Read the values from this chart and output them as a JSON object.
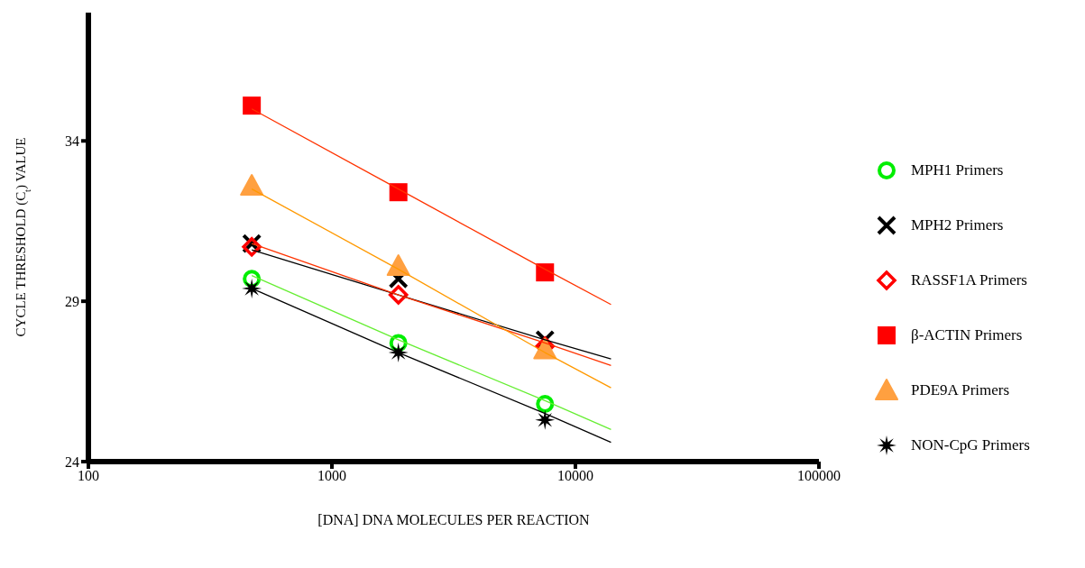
{
  "chart_data": {
    "type": "scatter",
    "xlabel": "[DNA] DNA MOLECULES PER REACTION",
    "ylabel": "CYCLE THRESHOLD (C$_{t}$) VALUE",
    "log": "x",
    "xlim": [
      100,
      100000
    ],
    "xticks": [
      100,
      1000,
      10000,
      100000
    ],
    "ylim": [
      24,
      38
    ],
    "yticks": [
      24,
      29,
      34
    ],
    "legend": "right",
    "x": [
      468.75,
      1875,
      7500,
      14000
    ],
    "series": [
      {
        "name": "MPH1 Primers",
        "color": "#00ee00",
        "marker": "circle",
        "values": [
          29.7,
          27.7,
          25.8,
          null
        ]
      },
      {
        "name": "MPH2 Primers",
        "color": "#000000",
        "marker": "cross",
        "values": [
          30.8,
          29.7,
          27.8,
          null
        ]
      },
      {
        "name": "RASSF1A Primers",
        "color": "#ff0000",
        "marker": "diamond",
        "values": [
          30.7,
          29.2,
          27.6,
          null
        ]
      },
      {
        "name": "β-ACTIN Primers",
        "color": "#ff0000",
        "marker": "square",
        "values": [
          35.1,
          32.4,
          29.9,
          null
        ]
      },
      {
        "name": "PDE9A Primers",
        "color": "#ffa040",
        "marker": "triangle",
        "values": [
          32.6,
          30.1,
          27.5,
          null
        ]
      },
      {
        "name": "NON-CpG Primers",
        "color": "#000000",
        "marker": "star",
        "values": [
          29.4,
          27.4,
          25.3,
          null
        ]
      },
      {
        "type": "line",
        "color": "#66ee33",
        "values": [
          29.8,
          27.8,
          25.9,
          25.0
        ]
      },
      {
        "type": "line",
        "color": "#000000",
        "values": [
          30.6,
          29.2,
          27.8,
          27.2
        ]
      },
      {
        "type": "line",
        "color": "#ff3300",
        "values": [
          30.8,
          29.2,
          27.7,
          27.0
        ]
      },
      {
        "type": "line",
        "color": "#ff3300",
        "values": [
          35.0,
          32.5,
          30.0,
          28.9
        ]
      },
      {
        "type": "line",
        "color": "#ff9900",
        "values": [
          32.5,
          30.0,
          27.4,
          26.3
        ]
      },
      {
        "type": "line",
        "color": "#000000",
        "values": [
          29.4,
          27.4,
          25.5,
          24.6
        ]
      }
    ]
  }
}
